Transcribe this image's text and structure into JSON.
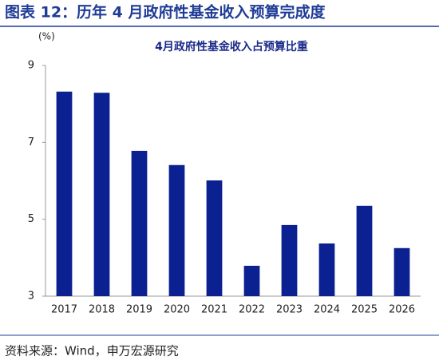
{
  "chart_data": {
    "type": "bar",
    "title": "图表 12：历年 4 月政府性基金收入预算完成度",
    "subtitle": "4月政府性基金收入占预算比重",
    "y_label": "(%)",
    "source": "资料来源：Wind，申万宏源研究",
    "categories": [
      "2017",
      "2018",
      "2019",
      "2020",
      "2021",
      "2022",
      "2023",
      "2024",
      "2025",
      "2026"
    ],
    "values": [
      8.32,
      8.29,
      6.78,
      6.41,
      6.01,
      3.79,
      4.85,
      4.37,
      5.35,
      4.25
    ],
    "color": "#0b2191",
    "ylim": [
      3,
      9
    ],
    "yticks": [
      3,
      5,
      7,
      9
    ],
    "grid": false
  }
}
